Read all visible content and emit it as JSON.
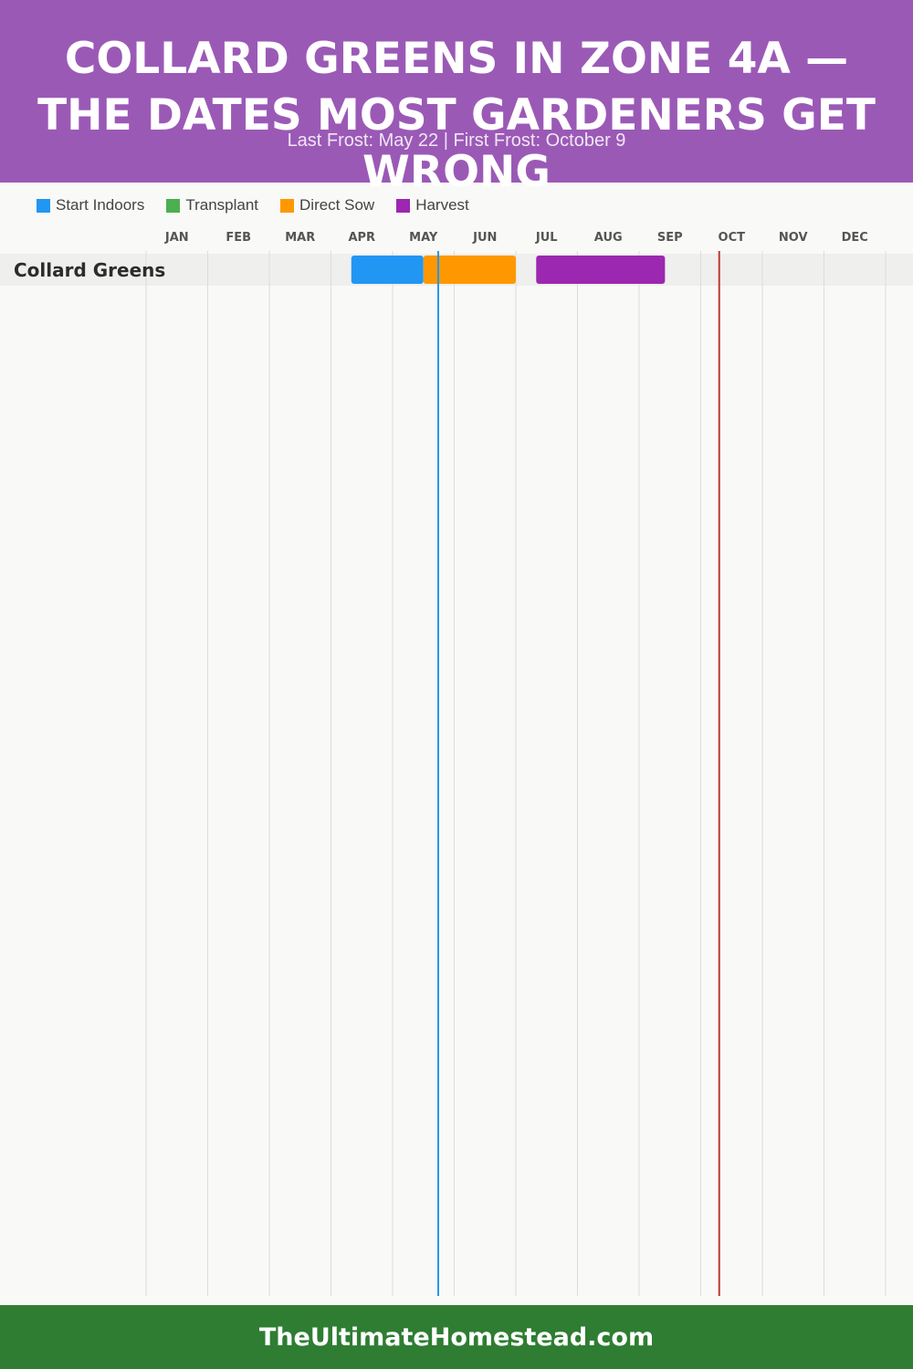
{
  "header": {
    "title": "COLLARD GREENS IN ZONE 4A — THE DATES MOST GARDENERS GET WRONG",
    "subtitle": "Last Frost: May 22 | First Frost: October 9"
  },
  "legend": [
    {
      "label": "Start Indoors",
      "color": "#2196f3"
    },
    {
      "label": "Transplant",
      "color": "#4caf50"
    },
    {
      "label": "Direct Sow",
      "color": "#ff9800"
    },
    {
      "label": "Harvest",
      "color": "#9c27b0"
    }
  ],
  "footer": {
    "site": "TheUltimateHomestead.com"
  },
  "chart_data": {
    "type": "gantt",
    "months": [
      "JAN",
      "FEB",
      "MAR",
      "APR",
      "MAY",
      "JUN",
      "JUL",
      "AUG",
      "SEP",
      "OCT",
      "NOV",
      "DEC"
    ],
    "crops": [
      {
        "name": "Collard Greens",
        "bars": [
          {
            "phase": "Start Indoors",
            "start": 3.33,
            "end": 4.5
          },
          {
            "phase": "Direct Sow",
            "start": 4.5,
            "end": 6.0
          },
          {
            "phase": "Harvest",
            "start": 6.33,
            "end": 8.42
          }
        ]
      }
    ],
    "markers": [
      {
        "label": "Last Frost",
        "month_pos": 4.74,
        "color": "#2196f3"
      },
      {
        "label": "First Frost",
        "month_pos": 9.3,
        "color": "#c0392b"
      }
    ]
  }
}
